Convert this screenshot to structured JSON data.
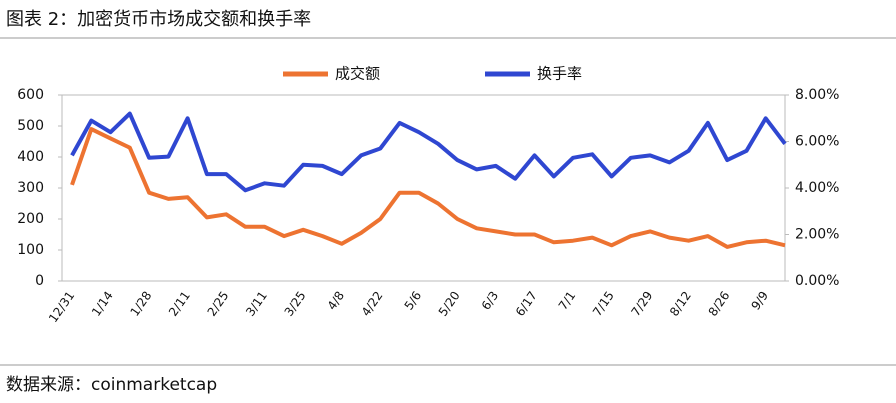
{
  "chart_data": {
    "type": "line",
    "title": "图表 2：加密货币市场成交额和换手率",
    "source": "数据来源：coinmarketcap",
    "categories": [
      "12/31",
      null,
      "1/14",
      null,
      "1/28",
      null,
      "2/11",
      null,
      "2/25",
      null,
      "3/11",
      null,
      "3/25",
      null,
      "4/8",
      null,
      "4/22",
      null,
      "5/6",
      null,
      "5/20",
      null,
      "6/3",
      null,
      "6/17",
      null,
      "7/1",
      null,
      "7/15",
      null,
      "7/29",
      null,
      "8/12",
      null,
      "8/26",
      null,
      "9/9",
      null
    ],
    "series": [
      {
        "name": "成交额",
        "color": "#ed7331",
        "axis": "y",
        "values": [
          310,
          490,
          460,
          430,
          285,
          265,
          270,
          205,
          215,
          175,
          175,
          145,
          165,
          145,
          120,
          155,
          200,
          285,
          285,
          250,
          200,
          170,
          160,
          150,
          150,
          125,
          130,
          140,
          115,
          145,
          160,
          140,
          130,
          145,
          110,
          125,
          130,
          115
        ]
      },
      {
        "name": "换手率",
        "color": "#2f47d1",
        "axis": "y2",
        "values": [
          5.4,
          6.9,
          6.4,
          7.2,
          5.3,
          5.35,
          7.0,
          4.6,
          4.6,
          3.9,
          4.2,
          4.1,
          5.0,
          4.95,
          4.6,
          5.4,
          5.7,
          6.8,
          6.4,
          5.9,
          5.2,
          4.8,
          4.95,
          4.4,
          5.4,
          4.5,
          5.3,
          5.45,
          4.5,
          5.3,
          5.4,
          5.1,
          5.6,
          6.8,
          5.2,
          5.6,
          7.0,
          5.9
        ]
      }
    ],
    "ylim": [
      0,
      600
    ],
    "yticks": [
      0,
      100,
      200,
      300,
      400,
      500,
      600
    ],
    "y2lim": [
      0,
      8
    ],
    "y2ticks": [
      {
        "value": 0,
        "label": "0.00%"
      },
      {
        "value": 2,
        "label": "2.00%"
      },
      {
        "value": 4,
        "label": "4.00%"
      },
      {
        "value": 6,
        "label": "6.00%"
      },
      {
        "value": 8,
        "label": "8.00%"
      }
    ],
    "legend": "top"
  }
}
